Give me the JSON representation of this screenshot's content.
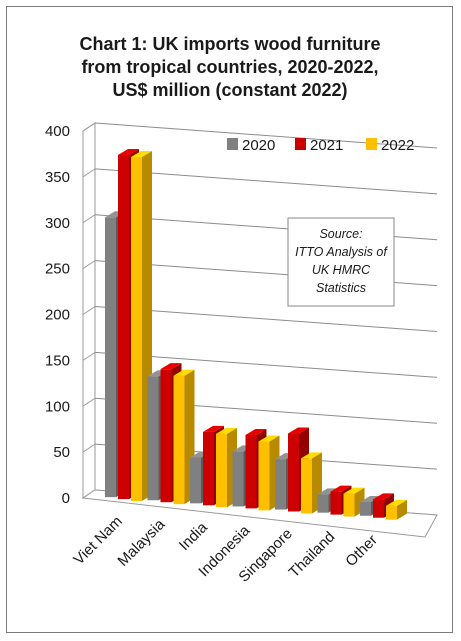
{
  "chart_data": {
    "type": "bar",
    "title_lines": [
      "Chart 1: UK imports wood furniture",
      "from tropical countries, 2020-2022,",
      "US$ million (constant 2022)"
    ],
    "categories": [
      "Viet Nam",
      "Malaysia",
      "India",
      "Indonesia",
      "Singapore",
      "Thailand",
      "Other"
    ],
    "series": [
      {
        "name": "2020",
        "color": "#808080",
        "values": [
          305,
          135,
          50,
          60,
          55,
          20,
          15
        ]
      },
      {
        "name": "2021",
        "color": "#cc0000",
        "values": [
          375,
          145,
          80,
          80,
          85,
          25,
          20
        ]
      },
      {
        "name": "2022",
        "color": "#ffc000",
        "values": [
          375,
          140,
          80,
          75,
          60,
          25,
          15
        ]
      }
    ],
    "yticks": [
      "0",
      "50",
      "100",
      "150",
      "200",
      "250",
      "300",
      "350",
      "400"
    ],
    "ylim": [
      0,
      400
    ],
    "grid": true,
    "legend_position": "top-right",
    "annotation_lines": [
      "Source:",
      "ITTO Analysis of",
      "UK HMRC",
      "Statistics"
    ]
  }
}
